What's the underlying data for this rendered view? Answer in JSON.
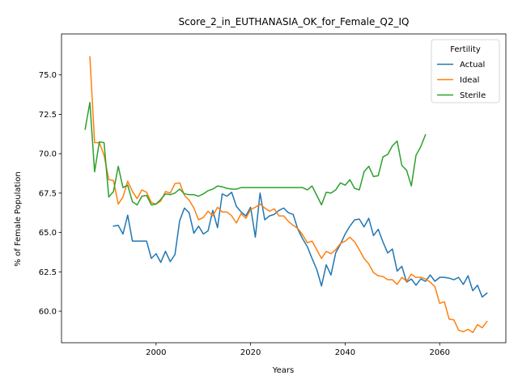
{
  "chart_data": {
    "type": "line",
    "title": "Score_2_in_EUTHANASIA_OK_for_Female_Q2_IQ",
    "xlabel": "Years",
    "ylabel": "% of Female Population",
    "xlim": [
      1980,
      2074
    ],
    "ylim": [
      58.0,
      77.6
    ],
    "xticks": [
      2000,
      2020,
      2040,
      2060
    ],
    "yticks": [
      60.0,
      62.5,
      65.0,
      67.5,
      70.0,
      72.5,
      75.0
    ],
    "grid": false,
    "legend": {
      "title": "Fertility",
      "position": "top-right"
    },
    "series": [
      {
        "name": "Actual",
        "color": "#1f77b4",
        "points": [
          [
            1991,
            65.4
          ],
          [
            1992,
            65.45
          ],
          [
            1993,
            64.9
          ],
          [
            1994,
            66.1
          ],
          [
            1995,
            64.45
          ],
          [
            1996,
            64.45
          ],
          [
            1997,
            64.45
          ],
          [
            1998,
            64.45
          ],
          [
            1999,
            63.35
          ],
          [
            2000,
            63.65
          ],
          [
            2001,
            63.1
          ],
          [
            2002,
            63.8
          ],
          [
            2003,
            63.15
          ],
          [
            2004,
            63.6
          ],
          [
            2005,
            65.75
          ],
          [
            2006,
            66.55
          ],
          [
            2007,
            66.25
          ],
          [
            2008,
            64.95
          ],
          [
            2009,
            65.4
          ],
          [
            2010,
            64.9
          ],
          [
            2011,
            65.1
          ],
          [
            2012,
            66.4
          ],
          [
            2013,
            65.3
          ],
          [
            2014,
            67.45
          ],
          [
            2015,
            67.3
          ],
          [
            2016,
            67.55
          ],
          [
            2017,
            66.65
          ],
          [
            2018,
            66.3
          ],
          [
            2019,
            66.05
          ],
          [
            2020,
            66.6
          ],
          [
            2021,
            64.7
          ],
          [
            2022,
            67.5
          ],
          [
            2023,
            65.8
          ],
          [
            2024,
            66.05
          ],
          [
            2025,
            66.15
          ],
          [
            2026,
            66.4
          ],
          [
            2027,
            66.55
          ],
          [
            2028,
            66.25
          ],
          [
            2029,
            66.15
          ],
          [
            2030,
            65.2
          ],
          [
            2031,
            64.6
          ],
          [
            2032,
            64.1
          ],
          [
            2033,
            63.35
          ],
          [
            2034,
            62.65
          ],
          [
            2035,
            61.6
          ],
          [
            2036,
            62.95
          ],
          [
            2037,
            62.3
          ],
          [
            2038,
            63.7
          ],
          [
            2039,
            64.25
          ],
          [
            2040,
            64.9
          ],
          [
            2041,
            65.4
          ],
          [
            2042,
            65.8
          ],
          [
            2043,
            65.85
          ],
          [
            2044,
            65.35
          ],
          [
            2045,
            65.9
          ],
          [
            2046,
            64.8
          ],
          [
            2047,
            65.2
          ],
          [
            2048,
            64.4
          ],
          [
            2049,
            63.7
          ],
          [
            2050,
            63.95
          ],
          [
            2051,
            62.55
          ],
          [
            2052,
            62.85
          ],
          [
            2053,
            61.85
          ],
          [
            2054,
            62.05
          ],
          [
            2055,
            61.65
          ],
          [
            2056,
            62.05
          ],
          [
            2057,
            61.9
          ],
          [
            2058,
            62.3
          ],
          [
            2059,
            61.9
          ],
          [
            2060,
            62.15
          ],
          [
            2061,
            62.15
          ],
          [
            2062,
            62.1
          ],
          [
            2063,
            62.0
          ],
          [
            2064,
            62.15
          ],
          [
            2065,
            61.7
          ],
          [
            2066,
            62.25
          ],
          [
            2067,
            61.3
          ],
          [
            2068,
            61.65
          ],
          [
            2069,
            60.9
          ],
          [
            2070,
            61.15
          ]
        ]
      },
      {
        "name": "Ideal",
        "color": "#ff7f0e",
        "points": [
          [
            1986,
            76.15
          ],
          [
            1987,
            70.7
          ],
          [
            1988,
            70.7
          ],
          [
            1989,
            69.9
          ],
          [
            1990,
            68.35
          ],
          [
            1991,
            68.3
          ],
          [
            1992,
            66.8
          ],
          [
            1993,
            67.25
          ],
          [
            1994,
            68.25
          ],
          [
            1995,
            67.6
          ],
          [
            1996,
            67.15
          ],
          [
            1997,
            67.7
          ],
          [
            1998,
            67.55
          ],
          [
            1999,
            66.9
          ],
          [
            2000,
            66.8
          ],
          [
            2001,
            67.0
          ],
          [
            2002,
            67.6
          ],
          [
            2003,
            67.5
          ],
          [
            2004,
            68.1
          ],
          [
            2005,
            68.15
          ],
          [
            2006,
            67.35
          ],
          [
            2007,
            67.05
          ],
          [
            2008,
            66.55
          ],
          [
            2009,
            65.8
          ],
          [
            2010,
            65.95
          ],
          [
            2011,
            66.35
          ],
          [
            2012,
            66.05
          ],
          [
            2013,
            66.6
          ],
          [
            2014,
            66.3
          ],
          [
            2015,
            66.3
          ],
          [
            2016,
            66.05
          ],
          [
            2017,
            65.6
          ],
          [
            2018,
            66.2
          ],
          [
            2019,
            65.9
          ],
          [
            2020,
            66.45
          ],
          [
            2021,
            66.6
          ],
          [
            2022,
            66.8
          ],
          [
            2023,
            66.55
          ],
          [
            2024,
            66.35
          ],
          [
            2025,
            66.5
          ],
          [
            2026,
            66.05
          ],
          [
            2027,
            66.05
          ],
          [
            2028,
            65.7
          ],
          [
            2029,
            65.45
          ],
          [
            2030,
            65.25
          ],
          [
            2031,
            64.85
          ],
          [
            2032,
            64.35
          ],
          [
            2033,
            64.45
          ],
          [
            2034,
            63.9
          ],
          [
            2035,
            63.35
          ],
          [
            2036,
            63.8
          ],
          [
            2037,
            63.65
          ],
          [
            2038,
            63.9
          ],
          [
            2039,
            64.3
          ],
          [
            2040,
            64.45
          ],
          [
            2041,
            64.7
          ],
          [
            2042,
            64.4
          ],
          [
            2043,
            63.9
          ],
          [
            2044,
            63.35
          ],
          [
            2045,
            63.0
          ],
          [
            2046,
            62.45
          ],
          [
            2047,
            62.25
          ],
          [
            2048,
            62.2
          ],
          [
            2049,
            62.0
          ],
          [
            2050,
            62.0
          ],
          [
            2051,
            61.7
          ],
          [
            2052,
            62.15
          ],
          [
            2053,
            61.9
          ],
          [
            2054,
            62.35
          ],
          [
            2055,
            62.15
          ],
          [
            2056,
            62.15
          ],
          [
            2057,
            62.05
          ],
          [
            2058,
            61.85
          ],
          [
            2059,
            61.55
          ],
          [
            2060,
            60.5
          ],
          [
            2061,
            60.6
          ],
          [
            2062,
            59.5
          ],
          [
            2063,
            59.45
          ],
          [
            2064,
            58.8
          ],
          [
            2065,
            58.7
          ],
          [
            2066,
            58.85
          ],
          [
            2067,
            58.65
          ],
          [
            2068,
            59.15
          ],
          [
            2069,
            58.95
          ],
          [
            2070,
            59.35
          ]
        ]
      },
      {
        "name": "Sterile",
        "color": "#2ca02c",
        "points": [
          [
            1985,
            71.55
          ],
          [
            1986,
            73.25
          ],
          [
            1987,
            68.85
          ],
          [
            1988,
            70.75
          ],
          [
            1989,
            70.7
          ],
          [
            1990,
            67.25
          ],
          [
            1991,
            67.6
          ],
          [
            1992,
            69.2
          ],
          [
            1993,
            67.85
          ],
          [
            1994,
            68.0
          ],
          [
            1995,
            66.95
          ],
          [
            1996,
            66.75
          ],
          [
            1997,
            67.3
          ],
          [
            1998,
            67.35
          ],
          [
            1999,
            66.75
          ],
          [
            2000,
            66.8
          ],
          [
            2001,
            67.1
          ],
          [
            2002,
            67.45
          ],
          [
            2003,
            67.4
          ],
          [
            2004,
            67.5
          ],
          [
            2005,
            67.75
          ],
          [
            2006,
            67.45
          ],
          [
            2007,
            67.4
          ],
          [
            2008,
            67.4
          ],
          [
            2009,
            67.3
          ],
          [
            2010,
            67.45
          ],
          [
            2011,
            67.65
          ],
          [
            2012,
            67.75
          ],
          [
            2013,
            67.95
          ],
          [
            2014,
            67.9
          ],
          [
            2015,
            67.8
          ],
          [
            2016,
            67.75
          ],
          [
            2017,
            67.75
          ],
          [
            2018,
            67.85
          ],
          [
            2019,
            67.85
          ],
          [
            2020,
            67.85
          ],
          [
            2021,
            67.85
          ],
          [
            2022,
            67.85
          ],
          [
            2023,
            67.85
          ],
          [
            2024,
            67.85
          ],
          [
            2025,
            67.85
          ],
          [
            2026,
            67.85
          ],
          [
            2027,
            67.85
          ],
          [
            2028,
            67.85
          ],
          [
            2029,
            67.85
          ],
          [
            2030,
            67.85
          ],
          [
            2031,
            67.85
          ],
          [
            2032,
            67.7
          ],
          [
            2033,
            67.95
          ],
          [
            2034,
            67.35
          ],
          [
            2035,
            66.75
          ],
          [
            2036,
            67.55
          ],
          [
            2037,
            67.5
          ],
          [
            2038,
            67.7
          ],
          [
            2039,
            68.15
          ],
          [
            2040,
            68.0
          ],
          [
            2041,
            68.35
          ],
          [
            2042,
            67.8
          ],
          [
            2043,
            67.7
          ],
          [
            2044,
            68.85
          ],
          [
            2045,
            69.2
          ],
          [
            2046,
            68.55
          ],
          [
            2047,
            68.6
          ],
          [
            2048,
            69.8
          ],
          [
            2049,
            69.95
          ],
          [
            2050,
            70.5
          ],
          [
            2051,
            70.8
          ],
          [
            2052,
            69.25
          ],
          [
            2053,
            68.95
          ],
          [
            2054,
            67.95
          ],
          [
            2055,
            69.9
          ],
          [
            2056,
            70.45
          ],
          [
            2057,
            71.2
          ]
        ]
      }
    ]
  }
}
